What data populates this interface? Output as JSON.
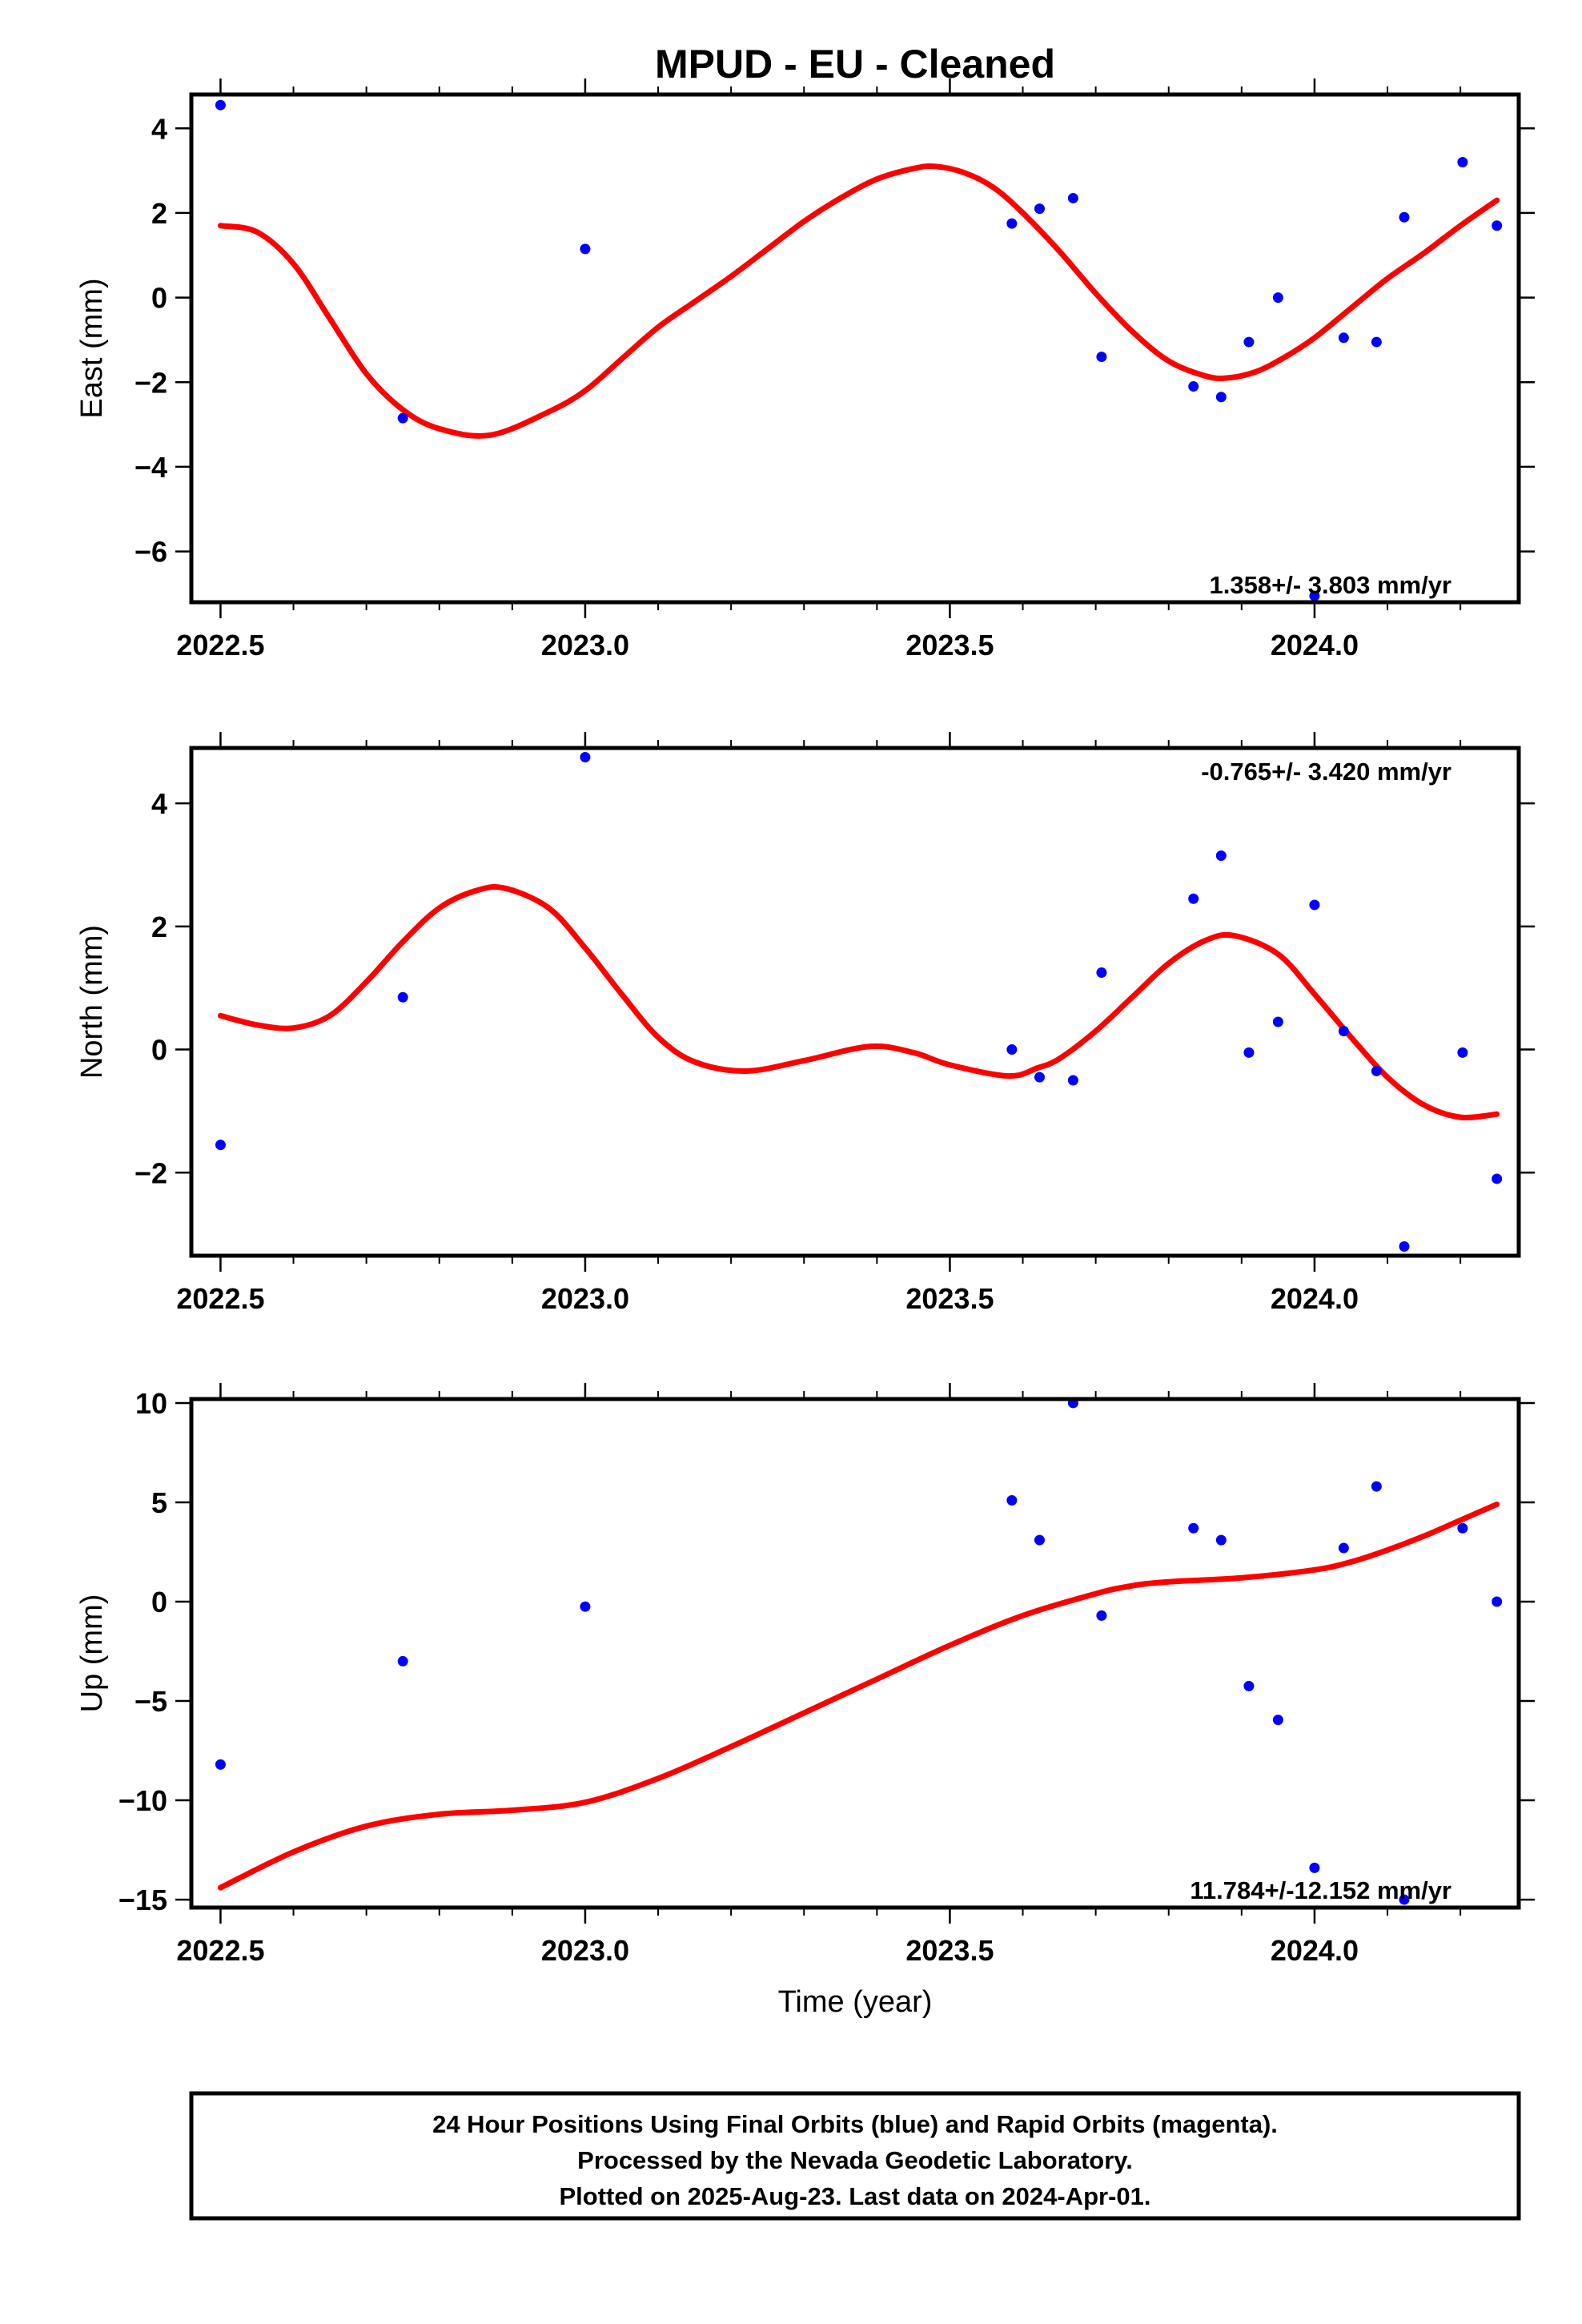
{
  "chart_data": {
    "title": "MPUD  - EU - Cleaned",
    "xlabel": "Time (year)",
    "xlim": [
      2022.46,
      2024.28
    ],
    "xticks": [
      2022.5,
      2023.0,
      2023.5,
      2024.0
    ],
    "xtick_labels": [
      "2022.5",
      "2023.0",
      "2023.5",
      "2024.0"
    ],
    "panels": [
      {
        "type": "scatter",
        "ylabel": "East (mm)",
        "ylim": [
          -7.2,
          4.8
        ],
        "yticks": [
          4,
          2,
          0,
          -2,
          -4,
          -6
        ],
        "ytick_labels": [
          "4",
          "2",
          "0",
          "−2",
          "−4",
          "−6"
        ],
        "rate": "1.358+/- 3.803 mm/yr",
        "rate_position": "bottom-right",
        "points": {
          "x": [
            2022.5,
            2022.75,
            2023.0,
            2023.585,
            2023.623,
            2023.669,
            2023.708,
            2023.834,
            2023.872,
            2023.91,
            2023.95,
            2024.0,
            2024.04,
            2024.085,
            2024.123,
            2024.203,
            2024.25
          ],
          "y": [
            4.55,
            -2.85,
            1.15,
            1.75,
            2.1,
            2.35,
            -1.4,
            -2.1,
            -2.35,
            -1.05,
            0.0,
            -7.05,
            -0.95,
            -1.05,
            1.9,
            3.2,
            1.7
          ]
        },
        "fit": {
          "x": [
            2022.5,
            2022.55,
            2022.6,
            2022.65,
            2022.7,
            2022.75,
            2022.8,
            2022.87,
            2022.95,
            2023.0,
            2023.05,
            2023.1,
            2023.15,
            2023.2,
            2023.25,
            2023.3,
            2023.35,
            2023.4,
            2023.45,
            2023.48,
            2023.52,
            2023.56,
            2023.6,
            2023.65,
            2023.7,
            2023.75,
            2023.8,
            2023.85,
            2023.88,
            2023.92,
            2023.96,
            2024.0,
            2024.05,
            2024.1,
            2024.15,
            2024.2,
            2024.25
          ],
          "y": [
            1.7,
            1.55,
            0.8,
            -0.5,
            -1.8,
            -2.65,
            -3.1,
            -3.25,
            -2.7,
            -2.2,
            -1.45,
            -0.7,
            -0.1,
            0.5,
            1.15,
            1.8,
            2.35,
            2.8,
            3.05,
            3.1,
            2.95,
            2.6,
            2.0,
            1.1,
            0.1,
            -0.8,
            -1.5,
            -1.85,
            -1.9,
            -1.75,
            -1.4,
            -0.95,
            -0.25,
            0.45,
            1.05,
            1.7,
            2.3
          ]
        }
      },
      {
        "type": "scatter",
        "ylabel": "North (mm)",
        "ylim": [
          -3.35,
          4.9
        ],
        "yticks": [
          4,
          2,
          0,
          -2
        ],
        "ytick_labels": [
          "4",
          "2",
          "0",
          "−2"
        ],
        "rate": "-0.765+/- 3.420 mm/yr",
        "rate_position": "top-right",
        "points": {
          "x": [
            2022.5,
            2022.75,
            2023.0,
            2023.585,
            2023.623,
            2023.669,
            2023.708,
            2023.834,
            2023.872,
            2023.91,
            2023.95,
            2024.0,
            2024.04,
            2024.085,
            2024.123,
            2024.203,
            2024.25
          ],
          "y": [
            -1.55,
            0.85,
            4.75,
            0.0,
            -0.45,
            -0.5,
            1.25,
            2.45,
            3.15,
            -0.05,
            0.45,
            2.35,
            0.3,
            -0.35,
            -3.2,
            -0.05,
            -2.1
          ]
        },
        "fit": {
          "x": [
            2022.5,
            2022.55,
            2022.6,
            2022.65,
            2022.7,
            2022.75,
            2022.8,
            2022.85,
            2022.89,
            2022.95,
            2023.0,
            2023.05,
            2023.1,
            2023.15,
            2023.22,
            2023.3,
            2023.39,
            2023.45,
            2023.5,
            2023.58,
            2023.62,
            2023.65,
            2023.7,
            2023.75,
            2023.8,
            2023.85,
            2023.89,
            2023.95,
            2024.0,
            2024.05,
            2024.1,
            2024.15,
            2024.2,
            2024.25
          ],
          "y": [
            0.55,
            0.4,
            0.35,
            0.55,
            1.1,
            1.75,
            2.3,
            2.58,
            2.62,
            2.3,
            1.65,
            0.9,
            0.2,
            -0.2,
            -0.35,
            -0.18,
            0.05,
            -0.05,
            -0.25,
            -0.43,
            -0.3,
            -0.15,
            0.3,
            0.85,
            1.4,
            1.77,
            1.85,
            1.55,
            0.9,
            0.2,
            -0.45,
            -0.9,
            -1.1,
            -1.05
          ]
        }
      },
      {
        "type": "scatter",
        "ylabel": "Up (mm)",
        "ylim": [
          -15.4,
          10.2
        ],
        "yticks": [
          10,
          5,
          0,
          -5,
          -10,
          -15
        ],
        "ytick_labels": [
          "10",
          "5",
          "0",
          "−5",
          "−10",
          "−15"
        ],
        "rate": "11.784+/-12.152 mm/yr",
        "rate_position": "bottom-right",
        "points": {
          "x": [
            2022.5,
            2022.75,
            2023.0,
            2023.585,
            2023.623,
            2023.669,
            2023.708,
            2023.834,
            2023.872,
            2023.91,
            2023.95,
            2024.0,
            2024.04,
            2024.085,
            2024.123,
            2024.203,
            2024.25
          ],
          "y": [
            -8.2,
            -3.0,
            -0.25,
            5.1,
            3.1,
            10.0,
            -0.7,
            3.7,
            3.1,
            -4.25,
            -5.95,
            -13.4,
            2.7,
            5.8,
            -15.0,
            3.7,
            0.0
          ]
        },
        "fit": {
          "x": [
            2022.5,
            2022.6,
            2022.7,
            2022.8,
            2022.9,
            2023.0,
            2023.1,
            2023.2,
            2023.3,
            2023.4,
            2023.5,
            2023.6,
            2023.7,
            2023.75,
            2023.8,
            2023.9,
            2024.0,
            2024.05,
            2024.1,
            2024.15,
            2024.2,
            2024.25
          ],
          "y": [
            -14.4,
            -12.6,
            -11.3,
            -10.7,
            -10.5,
            -10.1,
            -8.9,
            -7.3,
            -5.6,
            -3.9,
            -2.2,
            -0.7,
            0.4,
            0.8,
            1.0,
            1.2,
            1.6,
            2.0,
            2.6,
            3.3,
            4.1,
            4.9
          ]
        }
      }
    ],
    "colors": {
      "points": "#0000ff",
      "fit": "#ff0000"
    }
  },
  "caption": {
    "line1": "24 Hour Positions Using Final Orbits (blue) and Rapid Orbits (magenta).",
    "line2": "Processed by the Nevada Geodetic Laboratory.",
    "line3": "Plotted on 2025-Aug-23. Last data on 2024-Apr-01."
  }
}
